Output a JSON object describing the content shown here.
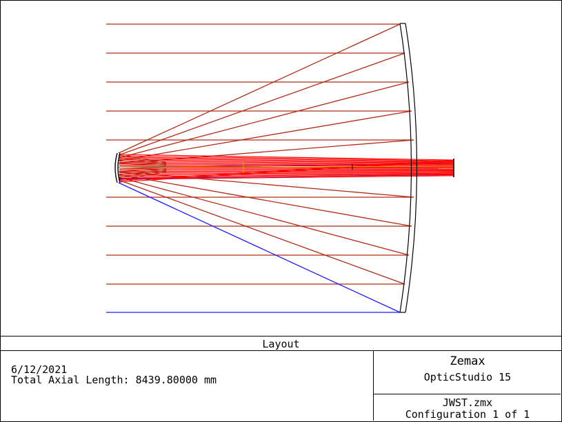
{
  "diagram": {
    "primary_mirror": "curved primary mirror on right",
    "secondary_mirror": "small convex secondary mirror on left",
    "ray_color": "#b22a14",
    "marginal_ray_color": "#1a1aff",
    "converging_ray_color": "#ff0000",
    "focus_color": "#000000"
  },
  "footer": {
    "title": "Layout",
    "date": "6/12/2021",
    "axial_length": "Total Axial Length: 8439.80000 mm",
    "brand": "Zemax",
    "product": "OpticStudio 15",
    "file": "JWST.zmx",
    "configuration": "Configuration 1 of 1"
  }
}
